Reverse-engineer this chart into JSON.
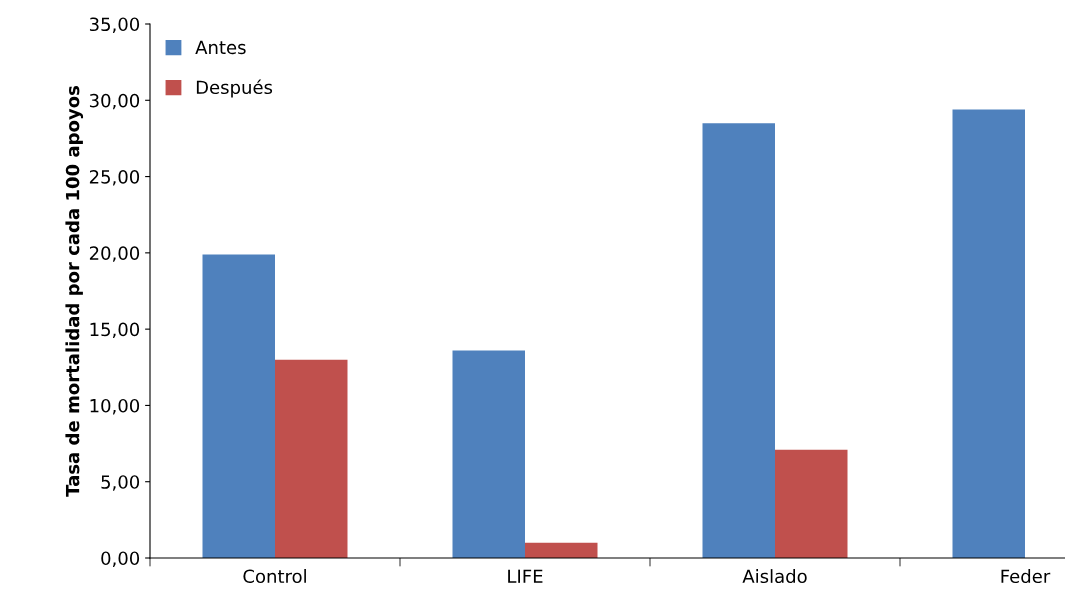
{
  "chart_data": {
    "type": "bar",
    "ylabel": "Tasa de mortalidad por cada 100 apoyos",
    "categories": [
      "Control",
      "LIFE",
      "Aislado",
      "Feder"
    ],
    "series": [
      {
        "name": "Antes",
        "color": "#4f81bd",
        "values": [
          19.9,
          13.6,
          28.5,
          29.4
        ]
      },
      {
        "name": "Después",
        "color": "#c0504d",
        "values": [
          13.0,
          1.0,
          7.1,
          null
        ]
      }
    ],
    "ylim": [
      0,
      35
    ],
    "yticks": [
      {
        "value": 0,
        "label": "0,00"
      },
      {
        "value": 5,
        "label": "5,00"
      },
      {
        "value": 10,
        "label": "10,00"
      },
      {
        "value": 15,
        "label": "15,00"
      },
      {
        "value": 20,
        "label": "20,00"
      },
      {
        "value": 25,
        "label": "25,00"
      },
      {
        "value": 30,
        "label": "30,00"
      },
      {
        "value": 35,
        "label": "35,00"
      }
    ],
    "grid": false,
    "legend": "top left"
  }
}
